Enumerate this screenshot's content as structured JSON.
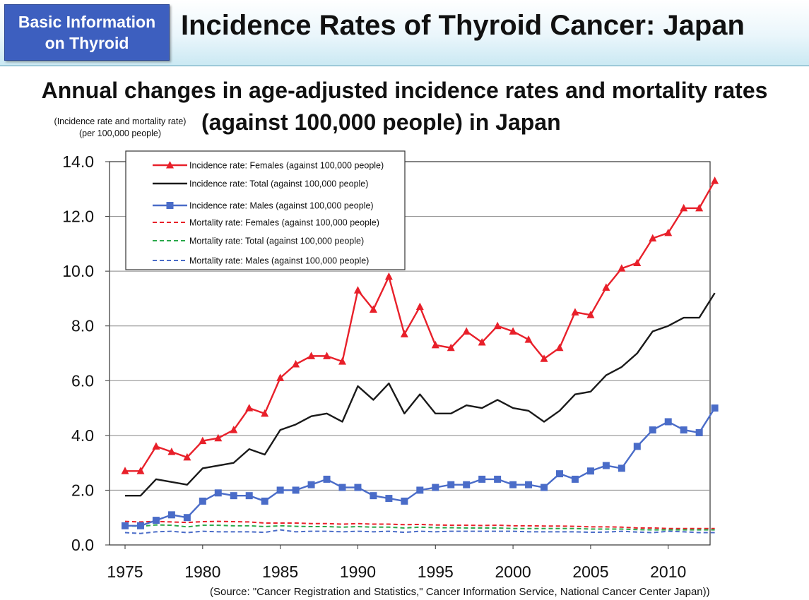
{
  "header": {
    "badge_line1": "Basic Information",
    "badge_line2": "on Thyroid",
    "title": "Incidence Rates of Thyroid Cancer: Japan"
  },
  "subtitle_line1": "Annual changes in age-adjusted incidence rates and mortality rates",
  "subtitle_line2": "(against 100,000 people) in Japan",
  "axis_unit_line1": "(Incidence rate and mortality rate)",
  "axis_unit_line2": "(per 100,000 people)",
  "source": "(Source: \"Cancer Registration and Statistics,\" Cancer Information Service, National Cancer Center Japan))",
  "colors": {
    "red": "#e8202a",
    "black": "#1a1a1a",
    "blue": "#4a6cc8",
    "green": "#2aa84a"
  },
  "chart_data": {
    "type": "line",
    "title": "Annual changes in age-adjusted incidence rates and mortality rates (against 100,000 people) in Japan",
    "ylabel": "(Incidence rate and mortality rate) (per 100,000 people)",
    "xlabel": "",
    "xlim": [
      1975,
      2013
    ],
    "ylim": [
      0,
      14
    ],
    "x_ticks": [
      1975,
      1980,
      1985,
      1990,
      1995,
      2000,
      2005,
      2010
    ],
    "y_ticks": [
      "0.0",
      "2.0",
      "4.0",
      "6.0",
      "8.0",
      "10.0",
      "12.0",
      "14.0"
    ],
    "grid": true,
    "legend_position": "top-left",
    "x": [
      1975,
      1976,
      1977,
      1978,
      1979,
      1980,
      1981,
      1982,
      1983,
      1984,
      1985,
      1986,
      1987,
      1988,
      1989,
      1990,
      1991,
      1992,
      1993,
      1994,
      1995,
      1996,
      1997,
      1998,
      1999,
      2000,
      2001,
      2002,
      2003,
      2004,
      2005,
      2006,
      2007,
      2008,
      2009,
      2010,
      2011,
      2012,
      2013
    ],
    "series": [
      {
        "name": "Incidence rate: Females (against 100,000 people)",
        "color": "red",
        "style": "solid",
        "marker": "triangle",
        "values": [
          2.7,
          2.7,
          3.6,
          3.4,
          3.2,
          3.8,
          3.9,
          4.2,
          5.0,
          4.8,
          6.1,
          6.6,
          6.9,
          6.9,
          6.7,
          9.3,
          8.6,
          9.8,
          7.7,
          8.7,
          7.3,
          7.2,
          7.8,
          7.4,
          8.0,
          7.8,
          7.5,
          6.8,
          7.2,
          8.5,
          8.4,
          9.4,
          10.1,
          10.3,
          11.2,
          11.4,
          12.3,
          12.3,
          13.3
        ]
      },
      {
        "name": "Incidence rate: Total (against 100,000 people)",
        "color": "black",
        "style": "solid",
        "marker": "none",
        "values": [
          1.8,
          1.8,
          2.4,
          2.3,
          2.2,
          2.8,
          2.9,
          3.0,
          3.5,
          3.3,
          4.2,
          4.4,
          4.7,
          4.8,
          4.5,
          5.8,
          5.3,
          5.9,
          4.8,
          5.5,
          4.8,
          4.8,
          5.1,
          5.0,
          5.3,
          5.0,
          4.9,
          4.5,
          4.9,
          5.5,
          5.6,
          6.2,
          6.5,
          7.0,
          7.8,
          8.0,
          8.3,
          8.3,
          9.2
        ]
      },
      {
        "name": "Incidence rate: Males (against 100,000 people)",
        "color": "blue",
        "style": "solid",
        "marker": "square",
        "values": [
          0.7,
          0.7,
          0.9,
          1.1,
          1.0,
          1.6,
          1.9,
          1.8,
          1.8,
          1.6,
          2.0,
          2.0,
          2.2,
          2.4,
          2.1,
          2.1,
          1.8,
          1.7,
          1.6,
          2.0,
          2.1,
          2.2,
          2.2,
          2.4,
          2.4,
          2.2,
          2.2,
          2.1,
          2.6,
          2.4,
          2.7,
          2.9,
          2.8,
          3.6,
          4.2,
          4.5,
          4.2,
          4.1,
          5.0
        ]
      },
      {
        "name": "Mortality rate: Females (against 100,000 people)",
        "color": "red",
        "style": "dashed",
        "marker": "none",
        "values": [
          0.86,
          0.84,
          0.86,
          0.84,
          0.82,
          0.85,
          0.86,
          0.85,
          0.84,
          0.8,
          0.8,
          0.8,
          0.78,
          0.78,
          0.76,
          0.78,
          0.76,
          0.76,
          0.74,
          0.75,
          0.73,
          0.72,
          0.72,
          0.71,
          0.72,
          0.7,
          0.7,
          0.69,
          0.69,
          0.68,
          0.66,
          0.66,
          0.65,
          0.62,
          0.62,
          0.6,
          0.6,
          0.6,
          0.6
        ]
      },
      {
        "name": "Mortality rate: Total (against 100,000 people)",
        "color": "green",
        "style": "dashed",
        "marker": "none",
        "values": [
          0.7,
          0.68,
          0.73,
          0.72,
          0.66,
          0.72,
          0.72,
          0.7,
          0.7,
          0.67,
          0.7,
          0.68,
          0.67,
          0.67,
          0.65,
          0.67,
          0.65,
          0.65,
          0.62,
          0.65,
          0.63,
          0.63,
          0.62,
          0.62,
          0.62,
          0.6,
          0.6,
          0.6,
          0.6,
          0.6,
          0.58,
          0.58,
          0.58,
          0.56,
          0.55,
          0.55,
          0.55,
          0.55,
          0.55
        ]
      },
      {
        "name": "Mortality rate: Males (against 100,000 people)",
        "color": "blue",
        "style": "dashed",
        "marker": "none",
        "values": [
          0.45,
          0.42,
          0.48,
          0.5,
          0.45,
          0.5,
          0.48,
          0.48,
          0.48,
          0.46,
          0.55,
          0.48,
          0.5,
          0.5,
          0.48,
          0.5,
          0.48,
          0.5,
          0.46,
          0.5,
          0.48,
          0.5,
          0.5,
          0.5,
          0.5,
          0.5,
          0.48,
          0.48,
          0.48,
          0.48,
          0.46,
          0.47,
          0.5,
          0.47,
          0.45,
          0.5,
          0.48,
          0.45,
          0.45
        ]
      }
    ]
  }
}
